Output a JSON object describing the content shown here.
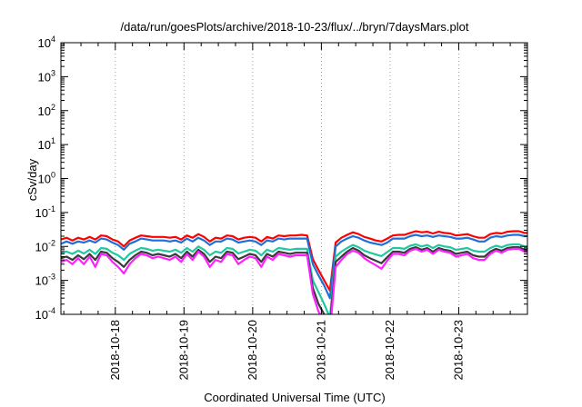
{
  "chart_data": {
    "type": "line",
    "title": "/data/run/goesPlots/archive/2018-10-23/flux/../bryn/7daysMars.plot",
    "xlabel": "Coordinated Universal Time (UTC)",
    "ylabel": "cSv/day",
    "yscale": "log",
    "ylim": [
      0.0001,
      10000
    ],
    "y_ticks": [
      {
        "base": "10",
        "exp": "-4"
      },
      {
        "base": "10",
        "exp": "-3"
      },
      {
        "base": "10",
        "exp": "-2"
      },
      {
        "base": "10",
        "exp": "-1"
      },
      {
        "base": "10",
        "exp": "0"
      },
      {
        "base": "10",
        "exp": "1"
      },
      {
        "base": "10",
        "exp": "2"
      },
      {
        "base": "10",
        "exp": "3"
      },
      {
        "base": "10",
        "exp": "4"
      }
    ],
    "xlim": [
      "2018-10-17T05:00",
      "2018-10-24T00:00"
    ],
    "x_ticks": [
      "2018-10-18",
      "2018-10-19",
      "2018-10-20",
      "2018-10-21",
      "2018-10-22",
      "2018-10-23"
    ],
    "grid": "vertical dotted at x ticks",
    "legend": "none",
    "x_base": "2018-10-17T05:00",
    "x_step_hours": 2,
    "series": [
      {
        "color": "#ff0000",
        "gap": [
          43,
          48
        ],
        "values": [
          0.016,
          0.018,
          0.015,
          0.018,
          0.016,
          0.019,
          0.016,
          0.021,
          0.02,
          0.016,
          0.014,
          0.01,
          0.015,
          0.018,
          0.021,
          0.02,
          0.019,
          0.019,
          0.019,
          0.018,
          0.019,
          0.016,
          0.021,
          0.018,
          0.023,
          0.019,
          0.014,
          0.018,
          0.017,
          0.021,
          0.02,
          0.016,
          0.018,
          0.019,
          0.018,
          0.014,
          0.019,
          0.017,
          0.021,
          0.02,
          0.021,
          0.021,
          0.022,
          0.021,
          0.0042,
          0.002,
          0.001,
          0.0005,
          0.013,
          0.018,
          0.022,
          0.026,
          0.023,
          0.019,
          0.017,
          0.015,
          0.014,
          0.017,
          0.021,
          0.022,
          0.022,
          0.025,
          0.028,
          0.026,
          0.027,
          0.024,
          0.027,
          0.025,
          0.024,
          0.021,
          0.022,
          0.023,
          0.02,
          0.018,
          0.018,
          0.023,
          0.025,
          0.024,
          0.027,
          0.028,
          0.028,
          0.025,
          0.025,
          0.02,
          0.023,
          0.023,
          0.023,
          0.021,
          0.02,
          0.021,
          0.021,
          0.023,
          0.021,
          0.02,
          0.023,
          0.027,
          0.026,
          0.022,
          0.021,
          0.02,
          0.02,
          0.019,
          0.02,
          0.018,
          0.018,
          0.022,
          0.022,
          0.021,
          0.022,
          0.02,
          0.019,
          0.02,
          0.018,
          0.019,
          0.021,
          0.018,
          0.019,
          0.023
        ]
      },
      {
        "color": "#1f6fd8",
        "gap": [
          43,
          48
        ],
        "values": [
          0.012,
          0.014,
          0.012,
          0.014,
          0.013,
          0.015,
          0.013,
          0.017,
          0.016,
          0.013,
          0.011,
          0.008,
          0.012,
          0.014,
          0.017,
          0.016,
          0.015,
          0.015,
          0.015,
          0.014,
          0.015,
          0.013,
          0.017,
          0.014,
          0.018,
          0.015,
          0.011,
          0.014,
          0.014,
          0.017,
          0.016,
          0.013,
          0.014,
          0.015,
          0.014,
          0.011,
          0.015,
          0.014,
          0.017,
          0.016,
          0.017,
          0.017,
          0.017,
          0.017,
          0.003,
          0.0014,
          0.0007,
          0.0003,
          0.01,
          0.014,
          0.017,
          0.02,
          0.018,
          0.015,
          0.013,
          0.012,
          0.011,
          0.013,
          0.017,
          0.017,
          0.017,
          0.02,
          0.022,
          0.02,
          0.021,
          0.019,
          0.021,
          0.02,
          0.019,
          0.017,
          0.017,
          0.018,
          0.016,
          0.014,
          0.014,
          0.018,
          0.02,
          0.019,
          0.021,
          0.022,
          0.022,
          0.02,
          0.02,
          0.016,
          0.018,
          0.018,
          0.018,
          0.017,
          0.016,
          0.017,
          0.017,
          0.018,
          0.017,
          0.016,
          0.018,
          0.021,
          0.02,
          0.017,
          0.017,
          0.016,
          0.016,
          0.015,
          0.016,
          0.014,
          0.014,
          0.017,
          0.017,
          0.017,
          0.017,
          0.016,
          0.015,
          0.016,
          0.014,
          0.015,
          0.017,
          0.014,
          0.015,
          0.018
        ]
      },
      {
        "color": "#20c8a0",
        "gap": [
          43,
          48
        ],
        "values": [
          0.0065,
          0.007,
          0.006,
          0.0075,
          0.0062,
          0.008,
          0.006,
          0.009,
          0.0085,
          0.0065,
          0.0055,
          0.004,
          0.006,
          0.0075,
          0.009,
          0.0085,
          0.0075,
          0.008,
          0.0075,
          0.007,
          0.008,
          0.0065,
          0.009,
          0.007,
          0.01,
          0.008,
          0.0055,
          0.007,
          0.0065,
          0.009,
          0.0085,
          0.0062,
          0.007,
          0.008,
          0.0075,
          0.0055,
          0.008,
          0.007,
          0.009,
          0.0085,
          0.008,
          0.0085,
          0.0085,
          0.0085,
          0.001,
          0.00045,
          0.0002,
          8e-05,
          0.005,
          0.007,
          0.009,
          0.011,
          0.0095,
          0.0075,
          0.0065,
          0.0058,
          0.0052,
          0.0068,
          0.009,
          0.009,
          0.0085,
          0.0105,
          0.0115,
          0.01,
          0.011,
          0.009,
          0.011,
          0.01,
          0.0095,
          0.008,
          0.0085,
          0.009,
          0.0075,
          0.007,
          0.007,
          0.009,
          0.0105,
          0.0095,
          0.011,
          0.0115,
          0.0115,
          0.01,
          0.01,
          0.008,
          0.009,
          0.009,
          0.009,
          0.0085,
          0.008,
          0.0085,
          0.0085,
          0.009,
          0.0085,
          0.008,
          0.009,
          0.011,
          0.0105,
          0.0085,
          0.0085,
          0.008,
          0.008,
          0.0075,
          0.008,
          0.007,
          0.007,
          0.0085,
          0.0085,
          0.008,
          0.0085,
          0.008,
          0.0075,
          0.008,
          0.007,
          0.0075,
          0.0085,
          0.007,
          0.0075,
          0.0095
        ]
      },
      {
        "color": "#3a3a3a",
        "gap": [
          43,
          48
        ],
        "values": [
          0.0045,
          0.005,
          0.004,
          0.0055,
          0.0042,
          0.006,
          0.004,
          0.007,
          0.0065,
          0.0045,
          0.0035,
          0.0025,
          0.004,
          0.0055,
          0.007,
          0.0065,
          0.0055,
          0.006,
          0.0055,
          0.005,
          0.006,
          0.0045,
          0.007,
          0.005,
          0.008,
          0.006,
          0.0035,
          0.005,
          0.0045,
          0.007,
          0.0065,
          0.0042,
          0.005,
          0.006,
          0.0055,
          0.0035,
          0.006,
          0.005,
          0.007,
          0.0065,
          0.006,
          0.0065,
          0.0065,
          0.0065,
          0.0006,
          0.0002,
          0.0001,
          5e-05,
          0.0035,
          0.005,
          0.007,
          0.009,
          0.0075,
          0.0055,
          0.0045,
          0.0038,
          0.0032,
          0.0048,
          0.007,
          0.007,
          0.0065,
          0.0085,
          0.0095,
          0.008,
          0.009,
          0.007,
          0.009,
          0.008,
          0.0075,
          0.006,
          0.0065,
          0.007,
          0.0055,
          0.005,
          0.005,
          0.007,
          0.0085,
          0.0075,
          0.009,
          0.0095,
          0.0095,
          0.008,
          0.008,
          0.006,
          0.007,
          0.007,
          0.007,
          0.0065,
          0.006,
          0.0065,
          0.0065,
          0.007,
          0.0065,
          0.006,
          0.007,
          0.009,
          0.0085,
          0.0065,
          0.0065,
          0.006,
          0.006,
          0.0055,
          0.006,
          0.005,
          0.005,
          0.0065,
          0.0065,
          0.006,
          0.0065,
          0.006,
          0.0055,
          0.006,
          0.005,
          0.0055,
          0.0065,
          0.005,
          0.0055,
          0.0075
        ]
      },
      {
        "color": "#ff20ff",
        "gap": [
          43,
          48
        ],
        "values": [
          0.0035,
          0.004,
          0.003,
          0.0045,
          0.003,
          0.005,
          0.0025,
          0.006,
          0.0055,
          0.0035,
          0.0025,
          0.0016,
          0.003,
          0.0045,
          0.006,
          0.0055,
          0.0045,
          0.005,
          0.0045,
          0.004,
          0.005,
          0.0035,
          0.006,
          0.004,
          0.007,
          0.005,
          0.0025,
          0.004,
          0.0035,
          0.006,
          0.0055,
          0.003,
          0.004,
          0.005,
          0.0045,
          0.0025,
          0.005,
          0.004,
          0.006,
          0.0055,
          0.005,
          0.0055,
          0.0055,
          0.0055,
          0.0004,
          0.00012,
          6e-05,
          3e-05,
          0.0025,
          0.004,
          0.006,
          0.0075,
          0.0065,
          0.0045,
          0.0035,
          0.0028,
          0.0022,
          0.0038,
          0.006,
          0.006,
          0.0055,
          0.0075,
          0.0085,
          0.007,
          0.008,
          0.006,
          0.008,
          0.007,
          0.0065,
          0.005,
          0.0055,
          0.006,
          0.0045,
          0.004,
          0.004,
          0.006,
          0.0075,
          0.0065,
          0.008,
          0.0085,
          0.0085,
          0.007,
          0.007,
          0.005,
          0.006,
          0.006,
          0.006,
          0.0055,
          0.005,
          0.0055,
          0.0055,
          0.006,
          0.0055,
          0.005,
          0.006,
          0.008,
          0.0075,
          0.0055,
          0.0055,
          0.005,
          0.005,
          0.0045,
          0.005,
          0.004,
          0.004,
          0.0055,
          0.0055,
          0.005,
          0.0055,
          0.005,
          0.0045,
          0.005,
          0.004,
          0.0045,
          0.0055,
          0.004,
          0.0045,
          0.0065
        ]
      }
    ]
  }
}
